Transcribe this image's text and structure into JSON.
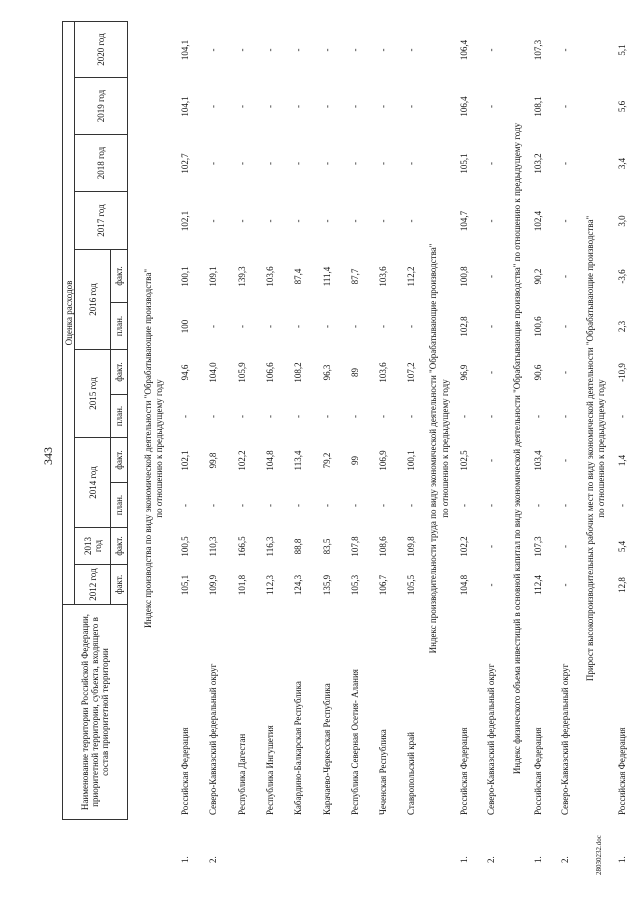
{
  "page_number": "343",
  "footer_file": "28030232.doc",
  "header": {
    "name_col": "Наименование территории Российской Федерации, приоритетной территории, субъекта, входящего в состав приоритетной территории",
    "estimate": "Оценка расходов",
    "y2012": "2012 год",
    "y2013": "2013 год",
    "y2014": "2014 год",
    "y2015": "2015 год",
    "y2016": "2016 год",
    "y2017": "2017 год",
    "y2018": "2018 год",
    "y2019": "2019 год",
    "y2020": "2020 год",
    "plan": "план.",
    "fact": "факт."
  },
  "sections": [
    {
      "title": [
        "Индекс производства по виду экономической деятельности \"Обрабатывающие производства\"",
        "по отношению к предыдущему году"
      ],
      "rows": [
        {
          "num": "1.",
          "name": "Российская Федерация",
          "values": [
            "105,1",
            "100,5",
            "-",
            "102,1",
            "-",
            "94,6",
            "100",
            "100,1",
            "102,1",
            "102,7",
            "104,1",
            "104,1"
          ]
        },
        {
          "num": "2.",
          "name": "Северо-Кавказский федеральный округ",
          "values": [
            "109,9",
            "110,3",
            "-",
            "99,8",
            "-",
            "104,0",
            "-",
            "109,1",
            "-",
            "-",
            "-",
            "-"
          ]
        },
        {
          "num": "",
          "name": "Республика Дагестан",
          "values": [
            "101,8",
            "166,5",
            "-",
            "102,2",
            "-",
            "105,9",
            "-",
            "139,3",
            "-",
            "-",
            "-",
            "-"
          ]
        },
        {
          "num": "",
          "name": "Республика Ингушетия",
          "values": [
            "112,3",
            "116,3",
            "-",
            "104,8",
            "-",
            "106,6",
            "-",
            "103,6",
            "-",
            "-",
            "-",
            "-"
          ]
        },
        {
          "num": "",
          "name": "Кабардино-Балкарская Республика",
          "values": [
            "124,3",
            "88,8",
            "-",
            "113,4",
            "-",
            "108,2",
            "-",
            "87,4",
            "-",
            "-",
            "-",
            "-"
          ]
        },
        {
          "num": "",
          "name": "Карачаево-Черкесская Республика",
          "values": [
            "135,9",
            "83,5",
            "-",
            "79,2",
            "-",
            "96,3",
            "-",
            "111,4",
            "-",
            "-",
            "-",
            "-"
          ]
        },
        {
          "num": "",
          "name": "Республика Северная Осетия- Алания",
          "values": [
            "105,3",
            "107,8",
            "-",
            "99",
            "-",
            "89",
            "-",
            "87,7",
            "-",
            "-",
            "-",
            "-"
          ]
        },
        {
          "num": "",
          "name": "Чеченская Республика",
          "values": [
            "106,7",
            "108,6",
            "-",
            "106,9",
            "-",
            "103,6",
            "-",
            "103,6",
            "-",
            "-",
            "-",
            "-"
          ]
        },
        {
          "num": "",
          "name": "Ставропольский край",
          "values": [
            "105,5",
            "109,8",
            "-",
            "100,1",
            "-",
            "107,2",
            "-",
            "112,2",
            "-",
            "-",
            "-",
            "-"
          ]
        }
      ]
    },
    {
      "title": [
        "Индекс производительности труда по виду экономической деятельности \"Обрабатывающие производства\"",
        "по отношению к предыдущему году"
      ],
      "rows": [
        {
          "num": "1.",
          "name": "Российская Федерация",
          "values": [
            "104,8",
            "102,2",
            "-",
            "102,5",
            "-",
            "96,9",
            "102,8",
            "100,8",
            "104,7",
            "105,1",
            "106,4",
            "106,4"
          ]
        },
        {
          "num": "2.",
          "name": "Северо-Кавказский федеральный округ",
          "values": [
            "-",
            "-",
            "-",
            "-",
            "-",
            "-",
            "-",
            "-",
            "-",
            "-",
            "-",
            "-"
          ]
        }
      ]
    },
    {
      "title": [
        "Индекс физического объема инвестиций в основной капитал по виду экономической деятельности \"Обрабатывающие производства\" по отношению к предыдущему году"
      ],
      "rows": [
        {
          "num": "1.",
          "name": "Российская Федерация",
          "values": [
            "112,4",
            "107,3",
            "-",
            "103,4",
            "-",
            "90,6",
            "100,6",
            "90,2",
            "102,4",
            "103,2",
            "108,1",
            "107,3"
          ]
        },
        {
          "num": "2.",
          "name": "Северо-Кавказский федеральный округ",
          "values": [
            "-",
            "-",
            "-",
            "-",
            "-",
            "-",
            "-",
            "-",
            "-",
            "-",
            "-",
            "-"
          ]
        }
      ]
    },
    {
      "title": [
        "Прирост высокопроизводительных рабочих мест по виду экономической деятельности \"Обрабатывающие производства\"",
        "по отношению к предыдущему году"
      ],
      "rows": [
        {
          "num": "1.",
          "name": "Российская Федерация",
          "values": [
            "12,8",
            "5,4",
            "-",
            "1,4",
            "-",
            "-10,9",
            "2,3",
            "-3,6",
            "3,0",
            "3,4",
            "5,6",
            "5,1"
          ]
        },
        {
          "num": "2.",
          "name": "Северо-Кавказский федеральный округ",
          "values": [
            "-",
            "-",
            "-",
            "-",
            "-",
            "-",
            "-",
            "-",
            "-",
            "-",
            "-",
            "-"
          ]
        }
      ]
    }
  ]
}
